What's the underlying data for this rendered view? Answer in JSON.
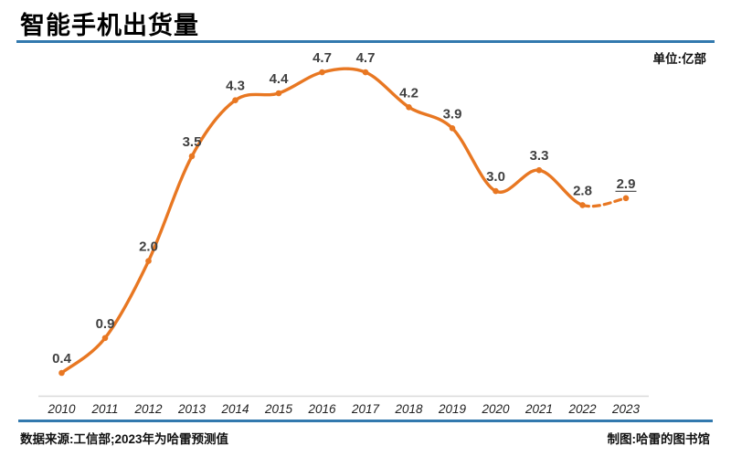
{
  "header": {
    "title": "智能手机出货量",
    "unit_label": "单位:亿部"
  },
  "chart_data": {
    "type": "line",
    "title": "智能手机出货量",
    "unit": "亿部",
    "x": [
      "2010",
      "2011",
      "2012",
      "2013",
      "2014",
      "2015",
      "2016",
      "2017",
      "2018",
      "2019",
      "2020",
      "2021",
      "2022",
      "2023"
    ],
    "series": [
      {
        "name": "智能手机出货量",
        "values": [
          0.4,
          0.9,
          2.0,
          3.5,
          4.3,
          4.4,
          4.7,
          4.7,
          4.2,
          3.9,
          3.0,
          3.3,
          2.8,
          2.9
        ]
      }
    ],
    "data_labels_shown": true,
    "forecast_last_point": true,
    "forecast_style": "dashed segment 2022-2023, underlined label",
    "xlabel": "",
    "ylabel": "",
    "ylim": [
      0,
      5
    ],
    "grid": false,
    "legend": "none",
    "line_color": "#E87722",
    "label_color": "#404040",
    "axis_color": "#D9D9D9"
  },
  "footer": {
    "source": "数据来源:工信部;2023年为哈雷预测值",
    "credit": "制图:哈雷的图书馆"
  },
  "colors": {
    "accent_blue": "#3279AE",
    "line_orange": "#E87722",
    "axis_gray": "#D9D9D9",
    "title_black": "#000000"
  }
}
